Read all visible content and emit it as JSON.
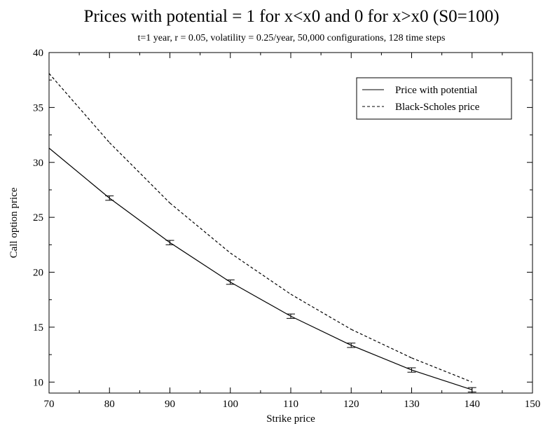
{
  "chart_data": {
    "type": "line",
    "title": "Prices with potential = 1 for x<x0 and 0 for x>x0 (S0=100)",
    "subtitle": "t=1 year, r = 0.05, volatility = 0.25/year, 50,000 configurations, 128 time steps",
    "xlabel": "Strike price",
    "ylabel": "Call option price",
    "xlim": [
      70,
      150
    ],
    "ylim": [
      9,
      40
    ],
    "xticks": [
      70,
      80,
      90,
      100,
      110,
      120,
      130,
      140,
      150
    ],
    "yticks": [
      10,
      15,
      20,
      25,
      30,
      35,
      40
    ],
    "grid": false,
    "legend_position": "top-right",
    "series": [
      {
        "name": "Price with potential",
        "style": "solid",
        "x": [
          70,
          80,
          90,
          100,
          110,
          120,
          130,
          140
        ],
        "y": [
          31.3,
          26.75,
          22.7,
          19.1,
          16.0,
          13.35,
          11.1,
          9.3
        ],
        "error": [
          0.2,
          0.2,
          0.2,
          0.2,
          0.2,
          0.2,
          0.2,
          0.2
        ],
        "error_shown_from": 1
      },
      {
        "name": "Black-Scholes price",
        "style": "dashed",
        "x": [
          70,
          80,
          90,
          100,
          110,
          120,
          130,
          140
        ],
        "y": [
          38.1,
          31.8,
          26.3,
          21.75,
          18.0,
          14.8,
          12.2,
          10.0
        ]
      }
    ]
  }
}
